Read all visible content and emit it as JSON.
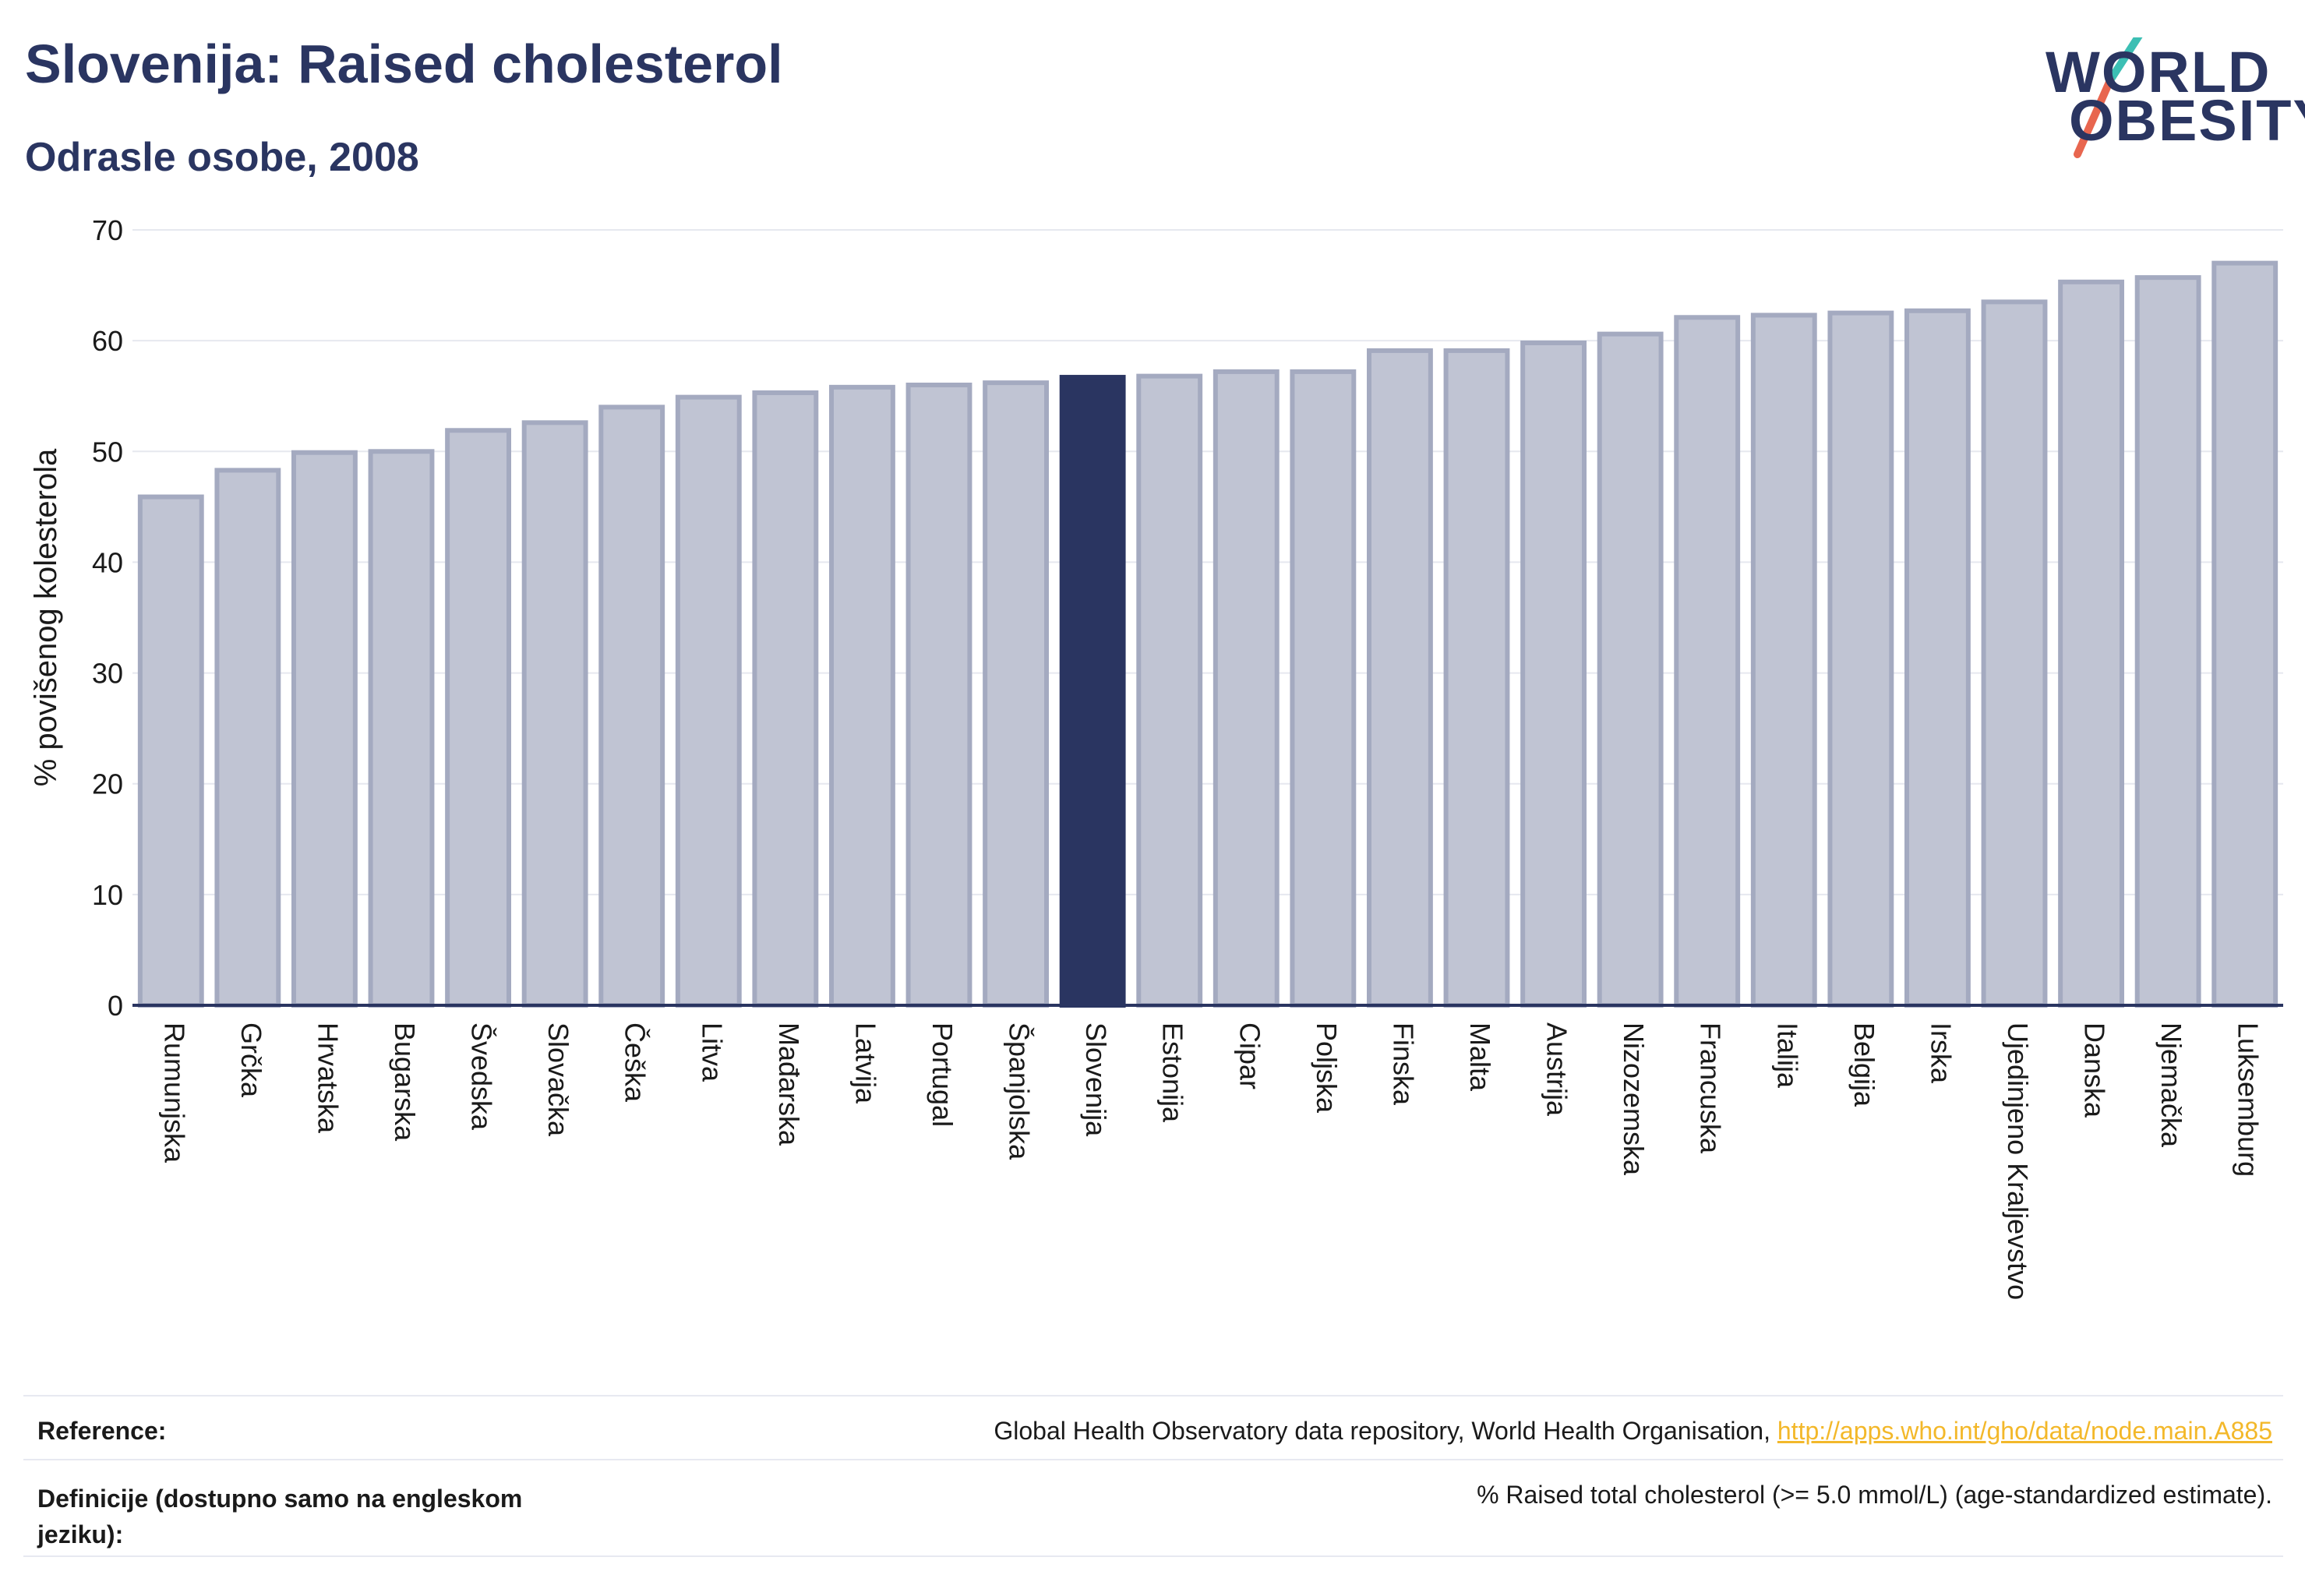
{
  "header": {
    "title": "Slovenija: Raised cholesterol",
    "subtitle": "Odrasle osobe, 2008"
  },
  "logo": {
    "line1": "WORLD",
    "line2": "OBESITY",
    "slash_colors": [
      "#3cbfb4",
      "#e8664f"
    ]
  },
  "chart_data": {
    "type": "bar",
    "title": "Slovenija: Raised cholesterol",
    "subtitle": "Odrasle osobe, 2008",
    "xlabel": "",
    "ylabel": "% povišenog kolesterola",
    "ylim": [
      0,
      70
    ],
    "yticks": [
      0,
      10,
      20,
      30,
      40,
      50,
      60,
      70
    ],
    "grid": true,
    "highlight": "Slovenija",
    "colors": {
      "bar": "#c0c4d3",
      "bar_edge": "#a4aac0",
      "highlight": "#2a3561",
      "grid": "#e6e8ef",
      "axis": "#2a3561"
    },
    "categories": [
      "Rumunjska",
      "Grčka",
      "Hrvatska",
      "Bugarska",
      "Švedska",
      "Slovačka",
      "Češka",
      "Litva",
      "Mađarska",
      "Latvija",
      "Portugal",
      "Španjolska",
      "Slovenija",
      "Estonija",
      "Cipar",
      "Poljska",
      "Finska",
      "Malta",
      "Austrija",
      "Nizozemska",
      "Francuska",
      "Italija",
      "Belgija",
      "Irska",
      "Ujedinjeno Kraljevstvo",
      "Danska",
      "Njemačka",
      "Luksemburg"
    ],
    "values": [
      45.9,
      48.3,
      49.9,
      50.0,
      51.9,
      52.6,
      54.0,
      54.9,
      55.3,
      55.8,
      56.0,
      56.2,
      56.7,
      56.8,
      57.2,
      57.2,
      59.1,
      59.1,
      59.8,
      60.6,
      62.1,
      62.3,
      62.5,
      62.7,
      63.5,
      65.3,
      65.7,
      67.0
    ]
  },
  "footer": {
    "reference_label": "Reference:",
    "reference_text": "Global Health Observatory data repository, World Health Organisation, ",
    "reference_link": "http://apps.who.int/gho/data/node.main.A885",
    "definition_label": "Definicije (dostupno samo na engleskom jeziku):",
    "definition_text": "% Raised total cholesterol (>= 5.0 mmol/L) (age-standardized estimate)."
  }
}
